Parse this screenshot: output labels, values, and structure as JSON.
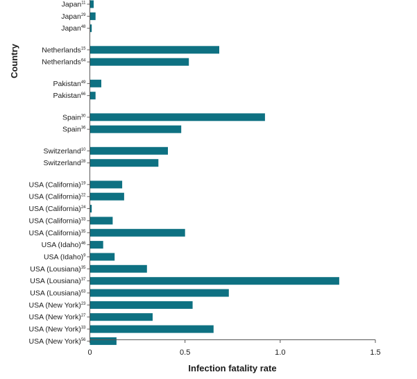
{
  "chart_data": {
    "type": "bar",
    "orientation": "horizontal",
    "xlabel": "Infection fatality rate",
    "ylabel": "Country",
    "xlim": [
      0,
      1.5
    ],
    "xticks": [
      "0",
      "0.5",
      "1.0",
      "1.5"
    ],
    "bar_color": "#0e7182",
    "grid": false,
    "categories": [
      {
        "group": "Japan",
        "name": "Japan",
        "ref": "11",
        "value": 0.02
      },
      {
        "group": "Japan",
        "name": "Japan",
        "ref": "29",
        "value": 0.03
      },
      {
        "group": "Japan",
        "name": "Japan",
        "ref": "48",
        "value": 0.01
      },
      {
        "group": "Netherlands",
        "name": "Netherlands",
        "ref": "15",
        "value": 0.68
      },
      {
        "group": "Netherlands",
        "name": "Netherlands",
        "ref": "64",
        "value": 0.52
      },
      {
        "group": "Pakistan",
        "name": "Pakistan",
        "ref": "49",
        "value": 0.06
      },
      {
        "group": "Pakistan",
        "name": "Pakistan",
        "ref": "66",
        "value": 0.03
      },
      {
        "group": "Spain",
        "name": "Spain",
        "ref": "30",
        "value": 0.92
      },
      {
        "group": "Spain",
        "name": "Spain",
        "ref": "36",
        "value": 0.48
      },
      {
        "group": "Switzerland",
        "name": "Switzerland",
        "ref": "10",
        "value": 0.41
      },
      {
        "group": "Switzerland",
        "name": "Switzerland",
        "ref": "28",
        "value": 0.36
      },
      {
        "group": "USA",
        "name": "USA (California)",
        "ref": "19",
        "value": 0.17
      },
      {
        "group": "USA",
        "name": "USA (California)",
        "ref": "22",
        "value": 0.18
      },
      {
        "group": "USA",
        "name": "USA (California)",
        "ref": "24",
        "value": 0.01
      },
      {
        "group": "USA",
        "name": "USA (California)",
        "ref": "33",
        "value": 0.12
      },
      {
        "group": "USA",
        "name": "USA (California)",
        "ref": "35",
        "value": 0.5
      },
      {
        "group": "USA",
        "name": "USA (Idaho)",
        "ref": "46",
        "value": 0.07
      },
      {
        "group": "USA",
        "name": "USA (Idaho)",
        "ref": "9",
        "value": 0.13
      },
      {
        "group": "USA",
        "name": "USA (Lousiana)",
        "ref": "35",
        "value": 0.3
      },
      {
        "group": "USA",
        "name": "USA (Lousiana)",
        "ref": "37",
        "value": 1.31
      },
      {
        "group": "USA",
        "name": "USA (Lousiana)",
        "ref": "63",
        "value": 0.73
      },
      {
        "group": "USA",
        "name": "USA (New York)",
        "ref": "23",
        "value": 0.54
      },
      {
        "group": "USA",
        "name": "USA (New York)",
        "ref": "27",
        "value": 0.33
      },
      {
        "group": "USA",
        "name": "USA (New York)",
        "ref": "33",
        "value": 0.65
      },
      {
        "group": "USA",
        "name": "USA (New York)",
        "ref": "56",
        "value": 0.14
      }
    ]
  }
}
